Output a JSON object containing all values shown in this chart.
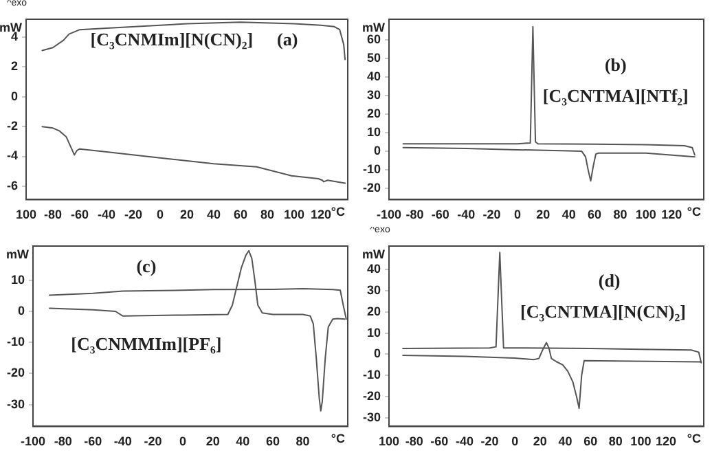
{
  "chart_data": [
    {
      "type": "line",
      "annotations": [
        "^exo",
        "[C₃CNMIm][N(CN)₂]",
        "(a)"
      ],
      "xlabel": "°C",
      "ylabel": "mW",
      "xlim": [
        -100,
        140
      ],
      "xticks": [
        {
          "value": -100,
          "label": "100"
        },
        -80,
        -60,
        -40,
        -20,
        0,
        20,
        40,
        60,
        80,
        100,
        120
      ],
      "ylim": [
        -6.9,
        5.2
      ],
      "yticks": [
        -6,
        -4,
        -2,
        0,
        2,
        4
      ],
      "series": [
        {
          "color": "#555555",
          "x": [
            -88,
            -80,
            -72,
            -68,
            -60,
            -40,
            0,
            20,
            60,
            100,
            120,
            130,
            134,
            137,
            138
          ],
          "values": [
            3.1,
            3.3,
            3.8,
            4.2,
            4.5,
            4.6,
            4.8,
            4.9,
            5.0,
            4.9,
            4.8,
            4.7,
            4.5,
            3.5,
            2.5
          ]
        },
        {
          "color": "#555555",
          "x": [
            -88,
            -80,
            -75,
            -70,
            -67,
            -64,
            -62,
            -60,
            -40,
            0,
            40,
            72,
            98,
            118,
            121,
            122,
            125,
            138
          ],
          "values": [
            -2.0,
            -2.1,
            -2.3,
            -2.7,
            -3.3,
            -3.9,
            -3.6,
            -3.5,
            -3.7,
            -4.1,
            -4.5,
            -4.7,
            -5.3,
            -5.5,
            -5.6,
            -5.7,
            -5.6,
            -5.8
          ]
        }
      ]
    },
    {
      "type": "line",
      "annotations": [
        "(b)",
        "[C₃CNTMA][NTf₂]"
      ],
      "xlabel": "°C",
      "ylabel": "mW",
      "xlim": [
        -100,
        145
      ],
      "xticks": [
        -100,
        -80,
        -60,
        -40,
        -20,
        0,
        20,
        40,
        60,
        80,
        100,
        120
      ],
      "ylim": [
        -26,
        71
      ],
      "yticks": [
        -20,
        -10,
        0,
        10,
        20,
        30,
        40,
        50,
        60
      ],
      "series": [
        {
          "color": "#555555",
          "x": [
            -89,
            0,
            10,
            12,
            14,
            16,
            60,
            100,
            130,
            136,
            138
          ],
          "values": [
            4,
            4,
            4.5,
            67,
            5,
            4,
            3.8,
            3.5,
            3,
            2,
            -2
          ]
        },
        {
          "color": "#555555",
          "x": [
            -89,
            -40,
            0,
            40,
            50,
            53,
            55,
            57,
            59,
            61,
            63,
            100,
            138
          ],
          "values": [
            2,
            1.5,
            0.8,
            0.2,
            0,
            -3,
            -10,
            -16,
            -8,
            -1.5,
            -1,
            -1,
            -3
          ]
        }
      ]
    },
    {
      "type": "line",
      "annotations": [
        "(c)",
        "[C₃CNMMIm][PF₆]"
      ],
      "xlabel": "°C",
      "ylabel": "mW",
      "xlim": [
        -100,
        110
      ],
      "xticks": [
        -100,
        -80,
        -60,
        -40,
        -20,
        0,
        20,
        40,
        60,
        80
      ],
      "ylim": [
        -37,
        21
      ],
      "yticks": [
        -30,
        -20,
        -10,
        0,
        10
      ],
      "series": [
        {
          "color": "#555555",
          "x": [
            -89,
            -60,
            -40,
            0,
            20,
            60,
            80,
            100,
            105,
            107,
            109
          ],
          "values": [
            5.2,
            5.8,
            6.5,
            6.8,
            7,
            7.1,
            7.3,
            7,
            6.8,
            2,
            -2.5
          ]
        },
        {
          "color": "#555555",
          "x": [
            -89,
            -60,
            -45,
            -40,
            0,
            30,
            33,
            36,
            39,
            42,
            44,
            46,
            48,
            50,
            53,
            60,
            80,
            85,
            87,
            89,
            91,
            92,
            93,
            95,
            97,
            100,
            103,
            108
          ],
          "values": [
            1,
            0.5,
            0,
            -1.5,
            -1.2,
            -1,
            2,
            8,
            14,
            18,
            19.5,
            17,
            10,
            2,
            -0.5,
            -1,
            -1,
            -1.5,
            -4,
            -15,
            -28,
            -32,
            -29,
            -15,
            -5,
            -2.5,
            -2.3,
            -2.5
          ]
        }
      ]
    },
    {
      "type": "line",
      "annotations": [
        "^exo",
        "(d)",
        "[C₃CNTMA][N(CN)₂]"
      ],
      "xlabel": "°C",
      "ylabel": "mW",
      "xlim": [
        -100,
        150
      ],
      "xticks": [
        {
          "value": -100,
          "label": "100"
        },
        -80,
        -60,
        -40,
        -20,
        0,
        20,
        40,
        60,
        80,
        100,
        120
      ],
      "ylim": [
        -34,
        51
      ],
      "yticks": [
        -30,
        -20,
        -10,
        0,
        10,
        20,
        30,
        40
      ],
      "series": [
        {
          "color": "#555555",
          "x": [
            -89,
            -20,
            -15,
            -12,
            -9,
            0,
            60,
            100,
            140,
            146,
            148
          ],
          "values": [
            2.7,
            3,
            3.5,
            48,
            3,
            3,
            2.7,
            2.3,
            2,
            1,
            -4
          ]
        },
        {
          "color": "#555555",
          "x": [
            -89,
            -40,
            0,
            15,
            19,
            22,
            25,
            27,
            29,
            33,
            38,
            42,
            46,
            49,
            51,
            53,
            55,
            80,
            120,
            148
          ],
          "values": [
            -0.5,
            -1,
            -1.8,
            -2.5,
            -2,
            2,
            5.5,
            3,
            -2,
            -3.5,
            -5,
            -8,
            -13,
            -20,
            -25.5,
            -10,
            -3,
            -3.2,
            -3.4,
            -3.6
          ]
        }
      ]
    }
  ]
}
